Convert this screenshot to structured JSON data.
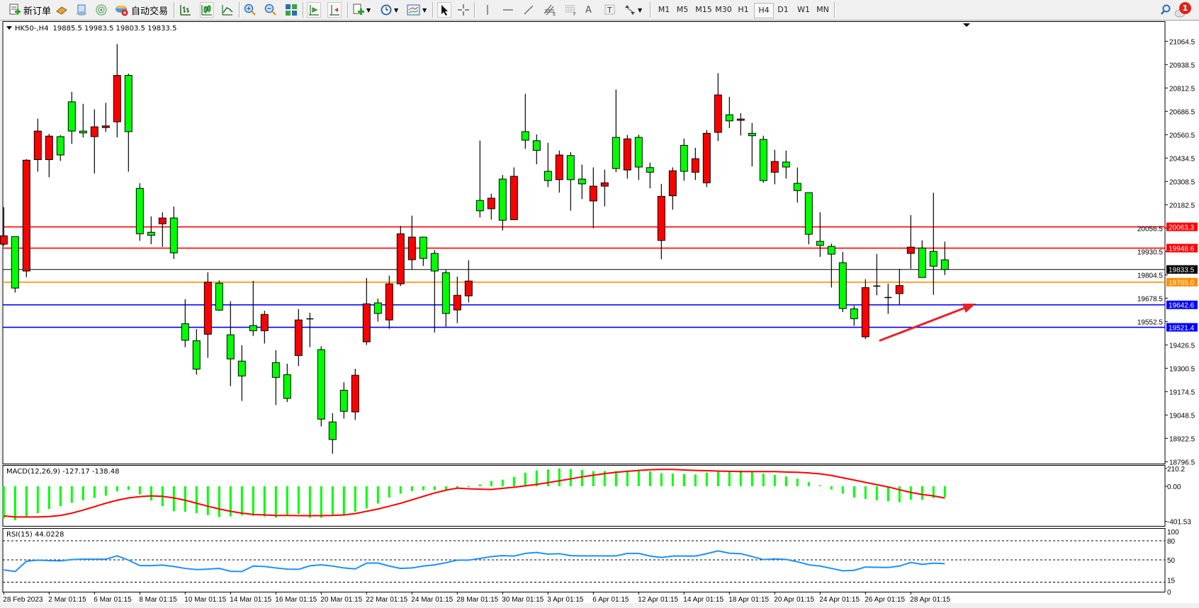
{
  "toolbar": {
    "new_order_label": "新订单",
    "auto_trade_label": "自动交易",
    "timeframes": [
      "M1",
      "M5",
      "M15",
      "M30",
      "H1",
      "H4",
      "D1",
      "W1",
      "MN"
    ],
    "active_timeframe": "H4",
    "notification_count": "1",
    "icons": [
      "new-order-icon",
      "gold-bars-icon",
      "market-watch-icon",
      "signals-icon",
      "auto-trade-icon",
      "bar-chart-icon",
      "candlestick-icon",
      "line-chart-icon",
      "zoom-in-icon",
      "zoom-out-icon",
      "tile-windows-icon",
      "auto-scroll-icon",
      "chart-shift-icon",
      "new-chart-icon",
      "periods-clock-icon",
      "templates-icon",
      "cursor-icon",
      "crosshair-icon",
      "vertical-line-icon",
      "horizontal-line-icon",
      "trendline-icon",
      "equidistant-channel-icon",
      "fibonacci-icon",
      "text-icon",
      "text-label-icon",
      "arrows-icon",
      "search-icon",
      "notification-icon"
    ]
  },
  "chart": {
    "symbol": "HK50-,H4",
    "ohlc_header": "19885.5 19983.5 19803.5 19833.5",
    "colors": {
      "bull": "#ff0000",
      "bear": "#00ff00",
      "background": "#ffffff",
      "foreground": "#000000"
    },
    "price_ticks": [
      "21064.5",
      "20938.5",
      "20812.5",
      "20686.5",
      "20560.5",
      "20434.5",
      "20308.5",
      "20182.5",
      "20056.5",
      "19930.5",
      "19804.5",
      "19678.5",
      "19552.5",
      "19426.5",
      "19300.5",
      "19174.5",
      "19048.5",
      "18922.5",
      "18796.5"
    ],
    "price_range": [
      18796.5,
      21064.5
    ],
    "levels": [
      {
        "price": 20063.3,
        "label": "20063.3",
        "color": "#ff0000"
      },
      {
        "price": 19948.6,
        "label": "19948.6",
        "color": "#ff0000"
      },
      {
        "price": 19833.5,
        "label": "19833.5",
        "color": "#000000"
      },
      {
        "price": 19765.0,
        "label": "19765.0",
        "color": "#ff8c00"
      },
      {
        "price": 19642.6,
        "label": "19642.6",
        "color": "#0000ff"
      },
      {
        "price": 19521.4,
        "label": "19521.4",
        "color": "#0000ff"
      }
    ],
    "annotation_arrow": {
      "color": "#e8202a",
      "from_price": 19450,
      "to_price": 19650,
      "direction": "up-right"
    },
    "candles_ohlc": [
      [
        19970,
        20170,
        19961,
        20015
      ],
      [
        20011,
        20011,
        19709,
        19733
      ],
      [
        19825,
        20429,
        19792,
        20423
      ],
      [
        20426,
        20647,
        20361,
        20580
      ],
      [
        20426,
        20565,
        20331,
        20553
      ],
      [
        20550,
        20558,
        20419,
        20451
      ],
      [
        20738,
        20792,
        20511,
        20580
      ],
      [
        20580,
        20727,
        20546,
        20570
      ],
      [
        20550,
        20697,
        20351,
        20603
      ],
      [
        20599,
        20732,
        20576,
        20608
      ],
      [
        20630,
        21049,
        20546,
        20880
      ],
      [
        20880,
        20890,
        20361,
        20577
      ],
      [
        20271,
        20299,
        19988,
        20026
      ],
      [
        20034,
        20120,
        19970,
        20018
      ],
      [
        20080,
        20142,
        19955,
        20111
      ],
      [
        20111,
        20173,
        19890,
        19923
      ],
      [
        19541,
        19673,
        19414,
        19452
      ],
      [
        19449,
        19512,
        19266,
        19296
      ],
      [
        19484,
        19818,
        19357,
        19765
      ],
      [
        19759,
        19774,
        19611,
        19614
      ],
      [
        19481,
        19662,
        19204,
        19351
      ],
      [
        19339,
        19425,
        19124,
        19259
      ],
      [
        19531,
        19772,
        19475,
        19503
      ],
      [
        19503,
        19611,
        19434,
        19591
      ],
      [
        19331,
        19398,
        19102,
        19251
      ],
      [
        19266,
        19325,
        19118,
        19138
      ],
      [
        19369,
        19620,
        19313,
        19561
      ],
      [
        19567,
        19600,
        19414,
        19565
      ],
      [
        19401,
        19419,
        18987,
        19026
      ],
      [
        19011,
        19058,
        18840,
        18916
      ],
      [
        19182,
        19225,
        19029,
        19068
      ],
      [
        19065,
        19298,
        19022,
        19263
      ],
      [
        19443,
        19787,
        19426,
        19648
      ],
      [
        19653,
        19676,
        19552,
        19596
      ],
      [
        19561,
        19800,
        19514,
        19756
      ],
      [
        19756,
        20068,
        19744,
        20026
      ],
      [
        19886,
        20124,
        19834,
        20008
      ],
      [
        20008,
        20011,
        19852,
        19893
      ],
      [
        19920,
        19938,
        19493,
        19825
      ],
      [
        19816,
        19831,
        19525,
        19596
      ],
      [
        19615,
        19795,
        19544,
        19694
      ],
      [
        19691,
        19883,
        19656,
        19771
      ],
      [
        20206,
        20529,
        20114,
        20150
      ],
      [
        20161,
        20242,
        20102,
        20218
      ],
      [
        20321,
        20343,
        20044,
        20099
      ],
      [
        20102,
        20384,
        20102,
        20336
      ],
      [
        20577,
        20781,
        20484,
        20531
      ],
      [
        20528,
        20562,
        20401,
        20476
      ],
      [
        20363,
        20517,
        20278,
        20313
      ],
      [
        20318,
        20475,
        20248,
        20451
      ],
      [
        20448,
        20467,
        20151,
        20318
      ],
      [
        20321,
        20399,
        20213,
        20295
      ],
      [
        20203,
        20384,
        20056,
        20283
      ],
      [
        20283,
        20372,
        20174,
        20301
      ],
      [
        20546,
        20804,
        20358,
        20378
      ],
      [
        20370,
        20559,
        20324,
        20538
      ],
      [
        20546,
        20561,
        20316,
        20386
      ],
      [
        20383,
        20410,
        20271,
        20358
      ],
      [
        19990,
        20295,
        19889,
        20228
      ],
      [
        20231,
        20384,
        20156,
        20366
      ],
      [
        20503,
        20540,
        20312,
        20363
      ],
      [
        20358,
        20490,
        20316,
        20431
      ],
      [
        20301,
        20586,
        20278,
        20568
      ],
      [
        20573,
        20892,
        20526,
        20775
      ],
      [
        20668,
        20765,
        20596,
        20635
      ],
      [
        20638,
        20677,
        20556,
        20645
      ],
      [
        20568,
        20624,
        20389,
        20555
      ],
      [
        20535,
        20555,
        20301,
        20313
      ],
      [
        20358,
        20479,
        20293,
        20416
      ],
      [
        20413,
        20475,
        20324,
        20386
      ],
      [
        20298,
        20384,
        20194,
        20259
      ],
      [
        20248,
        20248,
        19969,
        20023
      ],
      [
        19985,
        20142,
        19901,
        19963
      ],
      [
        19958,
        19973,
        19736,
        19916
      ],
      [
        19870,
        19928,
        19603,
        19623
      ],
      [
        19621,
        19638,
        19529,
        19568
      ],
      [
        19470,
        19781,
        19458,
        19736
      ],
      [
        19740,
        19917,
        19694,
        19744
      ],
      [
        19680,
        19757,
        19594,
        19682
      ],
      [
        19703,
        19837,
        19645,
        19747
      ],
      [
        19920,
        20127,
        19837,
        19954
      ],
      [
        19949,
        19990,
        19790,
        19790
      ],
      [
        19931,
        20247,
        19697,
        19851
      ],
      [
        19885.5,
        19983.5,
        19803.5,
        19833.5
      ]
    ],
    "time_labels": [
      "28 Feb 2023",
      "2 Mar 01:15",
      "6 Mar 01:15",
      "8 Mar 01:15",
      "10 Mar 01:15",
      "14 Mar 01:15",
      "16 Mar 01:15",
      "20 Mar 01:15",
      "22 Mar 01:15",
      "24 Mar 01:15",
      "28 Mar 01:15",
      "30 Mar 01:15",
      "3 Apr 01:15",
      "6 Apr 01:15",
      "12 Apr 01:15",
      "14 Apr 01:15",
      "18 Apr 01:15",
      "20 Apr 01:15",
      "24 Apr 01:15",
      "26 Apr 01:15",
      "28 Apr 01:15"
    ]
  },
  "macd": {
    "label": "MACD(12,26,9) -127.17 -138.48",
    "axis_labels": [
      "210.2",
      "0.00",
      "-401.53"
    ],
    "range": [
      -401.53,
      210.2
    ],
    "histogram_color": "#00ff00",
    "signal_color": "#ff0000",
    "histogram": [
      -380,
      -401,
      -363,
      -317,
      -268,
      -235,
      -195,
      -165,
      -138,
      -111,
      -60,
      -43,
      -95,
      -168,
      -235,
      -295,
      -300,
      -317,
      -341,
      -363,
      -357,
      -343,
      -349,
      -357,
      -371,
      -349,
      -327,
      -371,
      -371,
      -349,
      -349,
      -300,
      -262,
      -203,
      -133,
      -87,
      -57,
      -46,
      -46,
      -38,
      -30,
      -11,
      22,
      62,
      78,
      111,
      160,
      187,
      198,
      211,
      203,
      192,
      179,
      179,
      179,
      187,
      187,
      176,
      154,
      149,
      144,
      138,
      160,
      171,
      176,
      187,
      179,
      149,
      133,
      116,
      89,
      49,
      11,
      -38,
      -87,
      -133,
      -149,
      -165,
      -176,
      -187,
      -160,
      -160,
      -140,
      -127.17
    ],
    "signal": [
      -349,
      -362,
      -362,
      -362,
      -357,
      -344,
      -317,
      -281,
      -241,
      -200,
      -165,
      -138,
      -122,
      -114,
      -119,
      -138,
      -165,
      -200,
      -235,
      -268,
      -295,
      -317,
      -333,
      -338,
      -344,
      -344,
      -346,
      -346,
      -346,
      -344,
      -338,
      -322,
      -295,
      -268,
      -235,
      -200,
      -160,
      -119,
      -79,
      -46,
      -22,
      -30,
      -34,
      -38,
      -24,
      -11,
      5,
      22,
      43,
      65,
      87,
      111,
      130,
      149,
      165,
      176,
      187,
      195,
      198,
      198,
      192,
      187,
      184,
      179,
      176,
      173,
      173,
      173,
      173,
      168,
      165,
      157,
      146,
      127,
      100,
      73,
      46,
      19,
      -8,
      -41,
      -73,
      -97,
      -114,
      -138.48
    ]
  },
  "rsi": {
    "label": "RSI(15) 44.0228",
    "axis_labels": [
      "100",
      "80",
      "50",
      "15",
      "0"
    ],
    "levels": [
      80,
      50,
      15
    ],
    "color": "#1e90ff",
    "values": [
      34.3,
      31.7,
      47.8,
      49.6,
      48.9,
      48.5,
      50.4,
      51.1,
      51.1,
      51.1,
      56.3,
      49.6,
      41,
      41,
      41.8,
      39.6,
      36.6,
      34.7,
      35.4,
      36.6,
      32.1,
      31.7,
      40.3,
      39.6,
      37.3,
      35.4,
      35.1,
      40.7,
      42.2,
      40.3,
      37.3,
      35.8,
      44.8,
      45.1,
      40.3,
      36.6,
      37.3,
      40.3,
      42.2,
      45.5,
      49.6,
      49.6,
      52.2,
      55.2,
      56.7,
      56,
      60.1,
      61.6,
      59,
      59.7,
      56.7,
      56.3,
      56.3,
      56.3,
      56.3,
      60.1,
      60.1,
      56,
      53.7,
      56,
      56,
      56,
      59.7,
      64.2,
      60.4,
      59.7,
      55.2,
      50.4,
      51.5,
      50.7,
      47,
      42.2,
      40.3,
      36.6,
      32.8,
      33.6,
      38.8,
      38.4,
      38.1,
      40.3,
      45.9,
      42.9,
      44.8,
      44.0228
    ]
  }
}
